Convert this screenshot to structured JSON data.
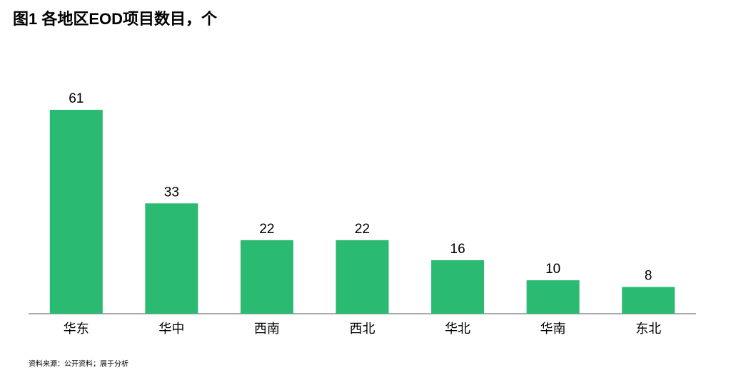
{
  "chart_data": {
    "type": "bar",
    "title": "图1 各地区EOD项目数目，个",
    "categories": [
      "华东",
      "华中",
      "西南",
      "西北",
      "华北",
      "华南",
      "东北"
    ],
    "values": [
      61,
      33,
      22,
      22,
      16,
      10,
      8
    ],
    "color": "#2bba72",
    "source": "资料来源：公开资料；展于分析"
  }
}
